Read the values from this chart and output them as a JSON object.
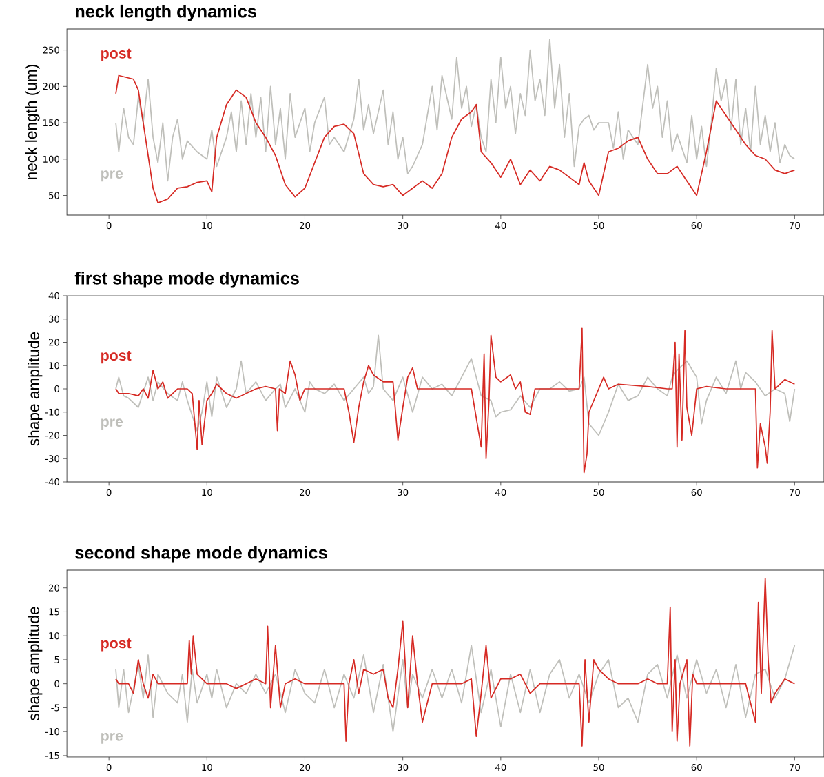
{
  "chart_data": [
    {
      "type": "line",
      "title": "neck length dynamics",
      "ylabel": "neck length (um)",
      "xlim": [
        -4.3,
        73
      ],
      "ylim": [
        23,
        279
      ],
      "xticks": [
        0,
        10,
        20,
        30,
        40,
        50,
        60,
        70
      ],
      "yticks": [
        50,
        100,
        150,
        200,
        250
      ],
      "series": [
        {
          "name": "pre",
          "color": "#bfbfba",
          "x": [
            0.7,
            1,
            1.5,
            2,
            2.5,
            3,
            3.5,
            4,
            4.5,
            5,
            5.5,
            6,
            6.5,
            7,
            7.5,
            8,
            9,
            10,
            10.5,
            11,
            12,
            12.5,
            13,
            13.5,
            14,
            14.5,
            15,
            15.5,
            16,
            16.5,
            17,
            17.5,
            18,
            18.5,
            19,
            20,
            20.5,
            21,
            22,
            22.5,
            23,
            24,
            25,
            25.5,
            26,
            26.5,
            27,
            28,
            28.5,
            29,
            29.5,
            30,
            30.5,
            31,
            32,
            33,
            33.5,
            34,
            35,
            35.5,
            36,
            36.5,
            37,
            37.5,
            38,
            38.5,
            39,
            39.5,
            40,
            40.5,
            41,
            41.5,
            42,
            42.5,
            43,
            43.5,
            44,
            44.5,
            45,
            45.5,
            46,
            46.5,
            47,
            47.5,
            48,
            48.5,
            49,
            49.5,
            50,
            51,
            51.5,
            52,
            52.5,
            53,
            54,
            55,
            55.5,
            56,
            56.5,
            57,
            57.5,
            58,
            59,
            59.5,
            60,
            60.5,
            61,
            61.5,
            62,
            62.5,
            63,
            63.5,
            64,
            64.5,
            65,
            65.5,
            66,
            66.5,
            67,
            67.5,
            68,
            68.5,
            69,
            69.5,
            70
          ],
          "values": [
            150,
            110,
            170,
            130,
            120,
            185,
            150,
            210,
            130,
            95,
            150,
            70,
            130,
            155,
            100,
            125,
            110,
            100,
            140,
            90,
            130,
            165,
            110,
            180,
            120,
            190,
            130,
            185,
            110,
            200,
            120,
            170,
            100,
            190,
            130,
            170,
            110,
            150,
            185,
            120,
            130,
            110,
            155,
            210,
            140,
            175,
            135,
            195,
            120,
            165,
            100,
            130,
            80,
            90,
            120,
            200,
            140,
            215,
            155,
            240,
            170,
            200,
            145,
            175,
            130,
            110,
            210,
            150,
            240,
            170,
            200,
            135,
            190,
            160,
            250,
            180,
            210,
            160,
            265,
            170,
            230,
            130,
            190,
            90,
            145,
            155,
            160,
            140,
            150,
            150,
            115,
            165,
            100,
            140,
            120,
            230,
            170,
            200,
            130,
            180,
            110,
            135,
            95,
            160,
            100,
            145,
            90,
            150,
            225,
            180,
            210,
            140,
            210,
            120,
            170,
            110,
            200,
            120,
            160,
            110,
            150,
            95,
            120,
            105,
            100
          ]
        },
        {
          "name": "post",
          "color": "#d62a24",
          "x": [
            0.7,
            1,
            2.5,
            3,
            4.5,
            5,
            6,
            7,
            8,
            9,
            10,
            10.5,
            11,
            12,
            13,
            14,
            15,
            16,
            17,
            18,
            19,
            20,
            21,
            22,
            23,
            24,
            25,
            26,
            27,
            28,
            29,
            30,
            31,
            32,
            33,
            34,
            35,
            36,
            37,
            37.5,
            38,
            39,
            40,
            41,
            42,
            43,
            44,
            45,
            46,
            47,
            48,
            48.5,
            49,
            50,
            51,
            52,
            53,
            54,
            55,
            56,
            57,
            58,
            59,
            60,
            61,
            62,
            63,
            64,
            65,
            66,
            67,
            68,
            69,
            70
          ],
          "values": [
            190,
            215,
            210,
            195,
            60,
            40,
            45,
            60,
            62,
            68,
            70,
            55,
            130,
            175,
            195,
            185,
            150,
            130,
            105,
            65,
            48,
            60,
            95,
            130,
            145,
            148,
            135,
            80,
            65,
            62,
            65,
            50,
            60,
            70,
            60,
            80,
            130,
            155,
            165,
            175,
            110,
            95,
            75,
            100,
            65,
            85,
            70,
            90,
            85,
            75,
            65,
            95,
            70,
            50,
            110,
            115,
            125,
            130,
            100,
            80,
            80,
            90,
            70,
            50,
            110,
            180,
            160,
            140,
            120,
            105,
            100,
            85,
            80,
            85
          ]
        }
      ]
    },
    {
      "type": "line",
      "title": "first shape mode dynamics",
      "ylabel": "shape amplitude",
      "xlim": [
        -4.3,
        73
      ],
      "ylim": [
        -40,
        40
      ],
      "xticks": [
        0,
        10,
        20,
        30,
        40,
        50,
        60,
        70
      ],
      "yticks": [
        -40,
        -30,
        -20,
        -10,
        0,
        10,
        20,
        30,
        40
      ],
      "series": [
        {
          "name": "pre",
          "color": "#bfbfba",
          "x": [
            0.7,
            1,
            1.5,
            2,
            3,
            4,
            4.5,
            5,
            6,
            7,
            7.5,
            8,
            9,
            9.5,
            10,
            10.5,
            11,
            12,
            13,
            13.5,
            14,
            15,
            16,
            17,
            17.5,
            18,
            19,
            20,
            20.5,
            21,
            22,
            23,
            24,
            25,
            26,
            26.5,
            27,
            27.5,
            28,
            29,
            30,
            31,
            32,
            33,
            34,
            35,
            36,
            37,
            37.5,
            38,
            39,
            39.5,
            40,
            41,
            42,
            43,
            44,
            45,
            46,
            47,
            48,
            48.5,
            49,
            50,
            51,
            52,
            53,
            54,
            55,
            56,
            57,
            57.5,
            58,
            59,
            60,
            60.5,
            61,
            62,
            63,
            64,
            64.5,
            65,
            66,
            67,
            68,
            69,
            69.5,
            70
          ],
          "values": [
            0,
            5,
            -3,
            -4,
            -8,
            5,
            -5,
            3,
            -2,
            -5,
            3,
            -5,
            -18,
            -10,
            3,
            -12,
            5,
            -8,
            0,
            12,
            -2,
            3,
            -5,
            0,
            2,
            -8,
            0,
            -10,
            3,
            0,
            -2,
            2,
            -5,
            0,
            5,
            -2,
            1,
            23,
            0,
            -5,
            5,
            -10,
            5,
            0,
            2,
            -3,
            5,
            13,
            5,
            -3,
            -5,
            -12,
            -10,
            -9,
            -3,
            -8,
            0,
            0,
            3,
            -1,
            0,
            5,
            -15,
            -20,
            -10,
            2,
            -5,
            -3,
            5,
            0,
            -3,
            5,
            8,
            12,
            5,
            -15,
            -5,
            5,
            -2,
            12,
            0,
            7,
            3,
            -3,
            0,
            -2,
            -14,
            0
          ]
        },
        {
          "name": "post",
          "color": "#d62a24",
          "x": [
            0.7,
            1,
            2,
            3,
            3.5,
            4,
            4.5,
            5,
            5.5,
            6,
            7,
            8,
            8.5,
            9,
            9.2,
            9.5,
            10,
            10.5,
            11,
            12,
            13,
            15,
            16,
            17,
            17.2,
            17.4,
            18,
            18.5,
            19,
            19.5,
            20,
            21,
            24,
            24.5,
            25,
            25.5,
            26,
            26.5,
            27,
            28,
            29,
            29.5,
            30,
            30.5,
            31,
            31.5,
            32,
            35,
            37,
            38,
            38.3,
            38.5,
            38.8,
            39,
            39.5,
            40,
            41,
            41.5,
            42,
            42.5,
            43,
            43.5,
            45,
            47,
            48,
            48.3,
            48.5,
            48.8,
            49,
            50,
            50.5,
            51,
            52,
            55,
            57,
            57.5,
            57.8,
            58,
            58.2,
            58.5,
            58.8,
            59,
            59.5,
            60,
            61,
            63,
            66,
            66.2,
            66.5,
            67,
            67.2,
            67.5,
            67.7,
            68,
            69,
            70
          ],
          "values": [
            0,
            -2,
            -2,
            -3,
            0,
            -4,
            8,
            0,
            3,
            -4,
            0,
            0,
            -2,
            -26,
            -5,
            -24,
            -5,
            -2,
            2,
            -2,
            -4,
            0,
            1,
            0,
            -18,
            0,
            -2,
            12,
            6,
            -5,
            0,
            0,
            0,
            -10,
            -23,
            -8,
            3,
            10,
            6,
            3,
            3,
            -22,
            -8,
            5,
            9,
            0,
            0,
            0,
            0,
            -25,
            15,
            -30,
            -5,
            23,
            5,
            3,
            6,
            0,
            3,
            -10,
            -11,
            0,
            0,
            0,
            0,
            26,
            -36,
            -28,
            -10,
            0,
            5,
            0,
            2,
            1,
            0,
            0,
            20,
            -25,
            15,
            -22,
            25,
            -8,
            -20,
            0,
            1,
            0,
            0,
            -34,
            -15,
            -25,
            -32,
            -10,
            25,
            0,
            4,
            2
          ]
        }
      ]
    },
    {
      "type": "line",
      "title": "second shape mode dynamics",
      "ylabel": "shape amplitude",
      "xlim": [
        -4.3,
        73
      ],
      "ylim": [
        -15.3,
        23.7
      ],
      "xticks": [
        0,
        10,
        20,
        30,
        40,
        50,
        60,
        70
      ],
      "yticks": [
        -15,
        -10,
        -5,
        0,
        5,
        10,
        15,
        20
      ],
      "series": [
        {
          "name": "pre",
          "color": "#bfbfba",
          "x": [
            0.7,
            1,
            1.5,
            2,
            3,
            3.5,
            4,
            4.5,
            5,
            6,
            7,
            7.5,
            8,
            8.5,
            9,
            10,
            10.5,
            11,
            12,
            13,
            14,
            15,
            16,
            17,
            18,
            19,
            20,
            21,
            22,
            23,
            24,
            25,
            26,
            27,
            28,
            29,
            30,
            30.5,
            31,
            32,
            33,
            34,
            35,
            36,
            37,
            38,
            39,
            40,
            41,
            42,
            43,
            44,
            45,
            46,
            47,
            48,
            49,
            50,
            51,
            52,
            53,
            54,
            55,
            56,
            57,
            58,
            59,
            60,
            61,
            62,
            63,
            64,
            65,
            66,
            67,
            68,
            69,
            70
          ],
          "values": [
            3,
            -5,
            3,
            -6,
            4,
            -3,
            6,
            -7,
            2,
            -2,
            -4,
            2,
            -8,
            3,
            -4,
            2,
            -3,
            3,
            -5,
            0,
            -2,
            2,
            -2,
            2,
            -6,
            3,
            -2,
            -4,
            3,
            -5,
            2,
            -3,
            6,
            -6,
            4,
            -10,
            5,
            -5,
            2,
            -3,
            3,
            -3,
            3,
            -4,
            8,
            -6,
            3,
            -9,
            2,
            -6,
            3,
            -6,
            2,
            5,
            -3,
            2,
            -4,
            2,
            5,
            -5,
            -3,
            -8,
            2,
            4,
            -3,
            6,
            -3,
            5,
            -2,
            3,
            -5,
            4,
            -7,
            2,
            3,
            -3,
            1,
            8
          ]
        },
        {
          "name": "post",
          "color": "#d62a24",
          "x": [
            0.7,
            1,
            2,
            2.5,
            3,
            3.5,
            4,
            4.5,
            5,
            6,
            7,
            8,
            8.2,
            8.4,
            8.6,
            9,
            10,
            11,
            12,
            13,
            14,
            15,
            16,
            16.2,
            16.5,
            17,
            17.5,
            18,
            19,
            20,
            22,
            23,
            24,
            24.2,
            24.5,
            25,
            25.5,
            26,
            27,
            28,
            28.5,
            29,
            29.5,
            30,
            30.5,
            31,
            31.5,
            32,
            33,
            34,
            35,
            36,
            37,
            37.5,
            38,
            38.5,
            39,
            40,
            41,
            42,
            43,
            44,
            46,
            48,
            48.3,
            48.6,
            49,
            49.5,
            50,
            51,
            52,
            54,
            55,
            56,
            57,
            57.3,
            57.5,
            57.8,
            58,
            58.3,
            59,
            59.3,
            59.6,
            60,
            61,
            63,
            65,
            66,
            66.3,
            66.6,
            67,
            67.3,
            67.6,
            68,
            69,
            70
          ],
          "values": [
            1,
            0,
            0,
            -2,
            5,
            0,
            -3,
            2,
            0,
            0,
            0,
            0,
            9,
            2,
            10,
            2,
            0,
            0,
            0,
            -1,
            0,
            1,
            0,
            12,
            -5,
            8,
            -5,
            0,
            1,
            0,
            0,
            0,
            0,
            -12,
            0,
            5,
            -2,
            3,
            2,
            3,
            -3,
            -5,
            3,
            13,
            -5,
            10,
            0,
            -8,
            0,
            0,
            0,
            0,
            1,
            -11,
            -2,
            8,
            -3,
            1,
            1,
            2,
            -2,
            0,
            0,
            0,
            -13,
            5,
            -8,
            5,
            3,
            1,
            0,
            0,
            1,
            0,
            0,
            16,
            -10,
            5,
            -12,
            0,
            5,
            -13,
            2,
            0,
            0,
            0,
            0,
            -8,
            17,
            -2,
            22,
            5,
            -4,
            -2,
            1,
            0
          ]
        }
      ]
    }
  ]
}
